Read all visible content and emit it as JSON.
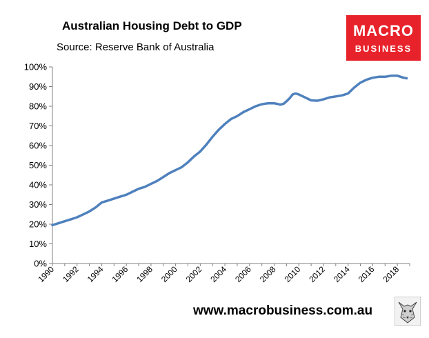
{
  "title": "Australian Housing Debt to GDP",
  "subtitle": "Source: Reserve Bank of Australia",
  "logo": {
    "line1": "MACRO",
    "line2": "BUSINESS"
  },
  "website": "www.macrobusiness.com.au",
  "colors": {
    "line": "#4f81bd",
    "logo_bg": "#e8222a",
    "axis": "#808080"
  },
  "chart_data": {
    "type": "line",
    "title": "Australian Housing Debt to GDP",
    "xlabel": "",
    "ylabel": "",
    "xlim": [
      1990,
      2019
    ],
    "ylim": [
      0,
      100
    ],
    "y_ticks": [
      0,
      10,
      20,
      30,
      40,
      50,
      60,
      70,
      80,
      90,
      100
    ],
    "y_tick_labels": [
      "0%",
      "10%",
      "20%",
      "30%",
      "40%",
      "50%",
      "60%",
      "70%",
      "80%",
      "90%",
      "100%"
    ],
    "x_ticks": [
      1990,
      1992,
      1994,
      1996,
      1998,
      2000,
      2002,
      2004,
      2006,
      2008,
      2010,
      2012,
      2014,
      2016,
      2018
    ],
    "x_tick_labels": [
      "1990",
      "1992",
      "1994",
      "1996",
      "1998",
      "2000",
      "2002",
      "2004",
      "2006",
      "2008",
      "2010",
      "2012",
      "2014",
      "2016",
      "2018"
    ],
    "grid": false,
    "series": [
      {
        "name": "Housing debt to GDP",
        "x": [
          1990,
          1990.5,
          1991,
          1991.5,
          1992,
          1992.5,
          1993,
          1993.5,
          1994,
          1994.5,
          1995,
          1995.5,
          1996,
          1996.5,
          1997,
          1997.5,
          1998,
          1998.5,
          1999,
          1999.5,
          2000,
          2000.5,
          2001,
          2001.5,
          2002,
          2002.5,
          2003,
          2003.5,
          2004,
          2004.5,
          2005,
          2005.5,
          2006,
          2006.5,
          2007,
          2007.5,
          2008,
          2008.25,
          2008.5,
          2008.75,
          2009,
          2009.25,
          2009.5,
          2009.75,
          2010,
          2010.5,
          2011,
          2011.5,
          2012,
          2012.5,
          2013,
          2013.5,
          2014,
          2014.5,
          2015,
          2015.5,
          2016,
          2016.5,
          2017,
          2017.5,
          2018,
          2018.5,
          2018.75
        ],
        "values": [
          19.5,
          20.5,
          21.5,
          22.5,
          23.5,
          25,
          26.5,
          28.5,
          31,
          32,
          33,
          34,
          35,
          36.5,
          38,
          39,
          40.5,
          42,
          44,
          46,
          47.5,
          49,
          51.5,
          54.5,
          57,
          60.5,
          64.5,
          68,
          71,
          73.5,
          75,
          77,
          78.5,
          80,
          81,
          81.5,
          81.5,
          81.2,
          80.8,
          81.2,
          82.5,
          84,
          86,
          86.5,
          86,
          84.5,
          83,
          82.8,
          83.5,
          84.5,
          85,
          85.5,
          86.5,
          89.5,
          92,
          93.5,
          94.5,
          95,
          95,
          95.5,
          95.5,
          94.5,
          94.2
        ]
      }
    ]
  }
}
